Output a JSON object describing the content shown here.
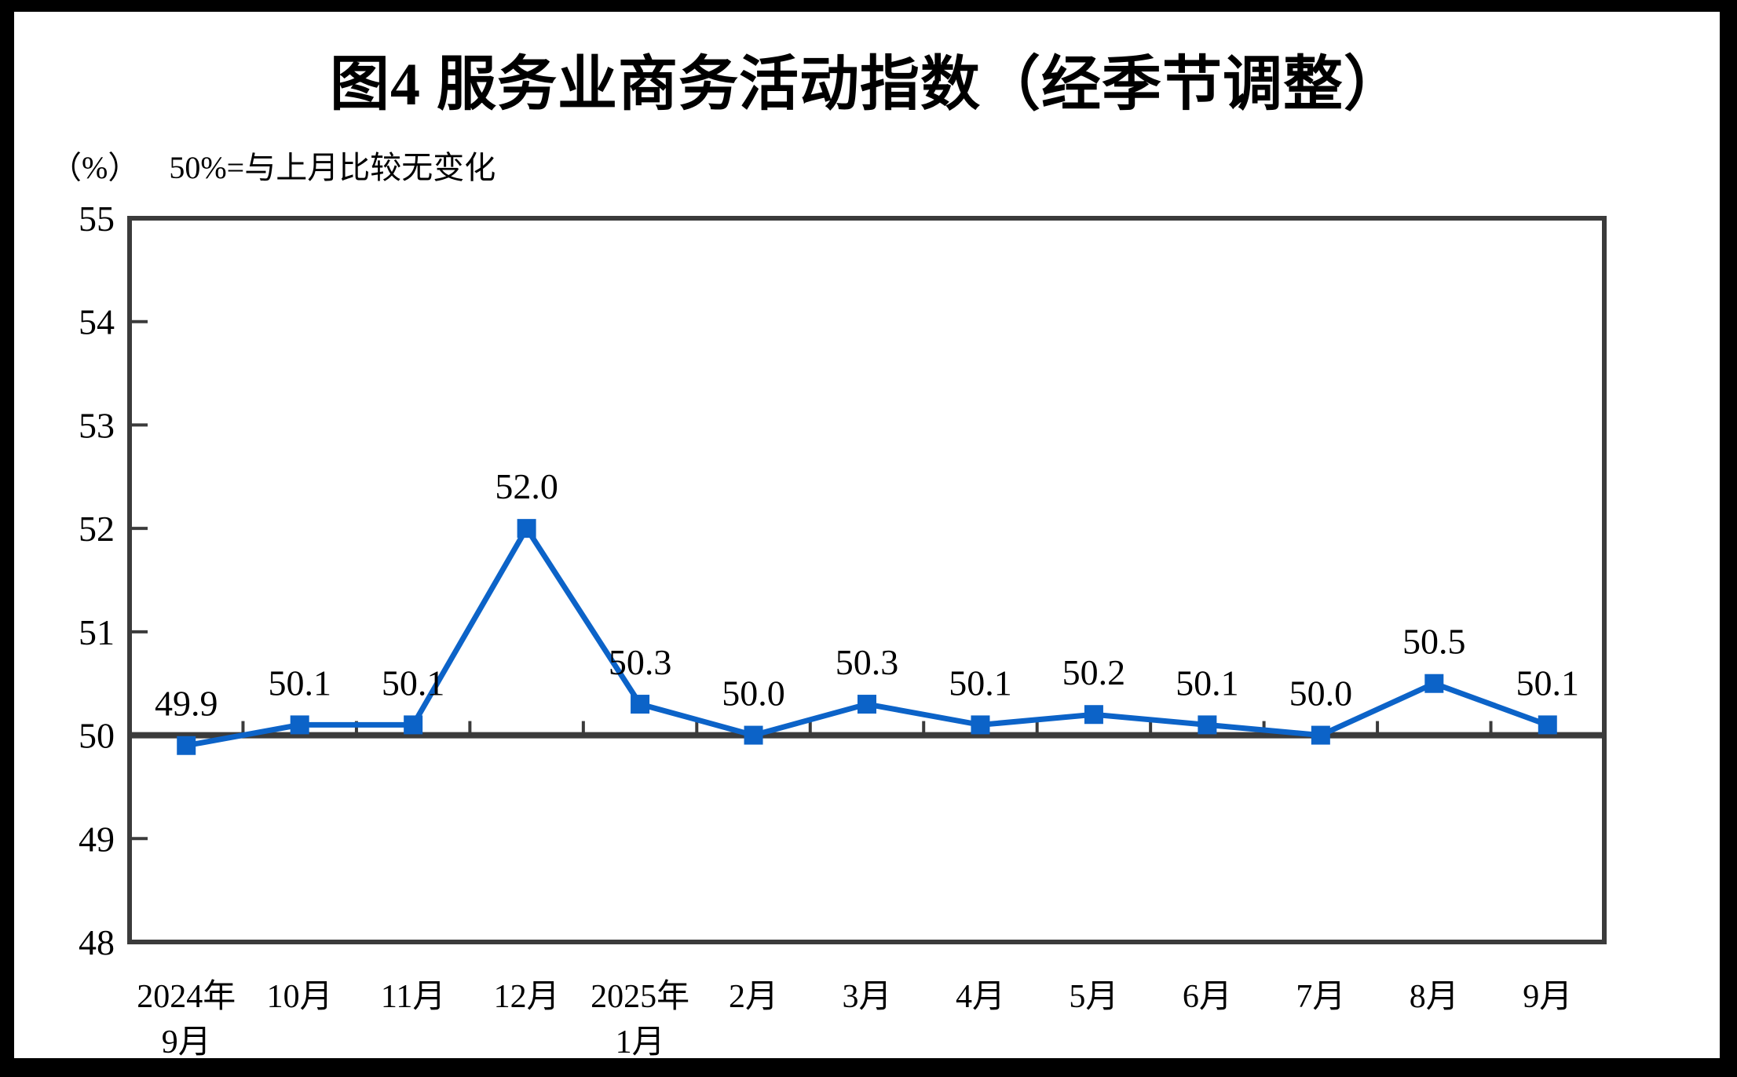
{
  "page": {
    "title": "图4 服务业商务活动指数（经季节调整）",
    "unit_label": "（%）",
    "baseline_note": "50%=与上月比较无变化"
  },
  "chart_data": {
    "type": "line",
    "title": "图4 服务业商务活动指数（经季节调整）",
    "ylabel": "（%）",
    "annotation": "50%=与上月比较无变化",
    "categories": [
      "2024年9月",
      "10月",
      "11月",
      "12月",
      "2025年1月",
      "2月",
      "3月",
      "4月",
      "5月",
      "6月",
      "7月",
      "8月",
      "9月"
    ],
    "x_tick_labels": [
      {
        "line1": "2024年",
        "line2": "9月"
      },
      {
        "line1": "10月",
        "line2": ""
      },
      {
        "line1": "11月",
        "line2": ""
      },
      {
        "line1": "12月",
        "line2": ""
      },
      {
        "line1": "2025年",
        "line2": "1月"
      },
      {
        "line1": "2月",
        "line2": ""
      },
      {
        "line1": "3月",
        "line2": ""
      },
      {
        "line1": "4月",
        "line2": ""
      },
      {
        "line1": "5月",
        "line2": ""
      },
      {
        "line1": "6月",
        "line2": ""
      },
      {
        "line1": "7月",
        "line2": ""
      },
      {
        "line1": "8月",
        "line2": ""
      },
      {
        "line1": "9月",
        "line2": ""
      }
    ],
    "series": [
      {
        "name": "服务业商务活动指数",
        "values": [
          49.9,
          50.1,
          50.1,
          52.0,
          50.3,
          50.0,
          50.3,
          50.1,
          50.2,
          50.1,
          50.0,
          50.5,
          50.1
        ],
        "data_labels": [
          "49.9",
          "50.1",
          "50.1",
          "52.0",
          "50.3",
          "50.0",
          "50.3",
          "50.1",
          "50.2",
          "50.1",
          "50.0",
          "50.5",
          "50.1"
        ]
      }
    ],
    "ylim": [
      48,
      55
    ],
    "y_ticks": [
      48,
      49,
      50,
      51,
      52,
      53,
      54,
      55
    ],
    "baseline_value": 50,
    "grid": false,
    "legend": "none",
    "marker": "square",
    "colors": {
      "line": "#0c63c8",
      "axis": "#3b3b3b",
      "text": "#000000",
      "background": "#ffffff",
      "outer_border": "#000000"
    }
  }
}
